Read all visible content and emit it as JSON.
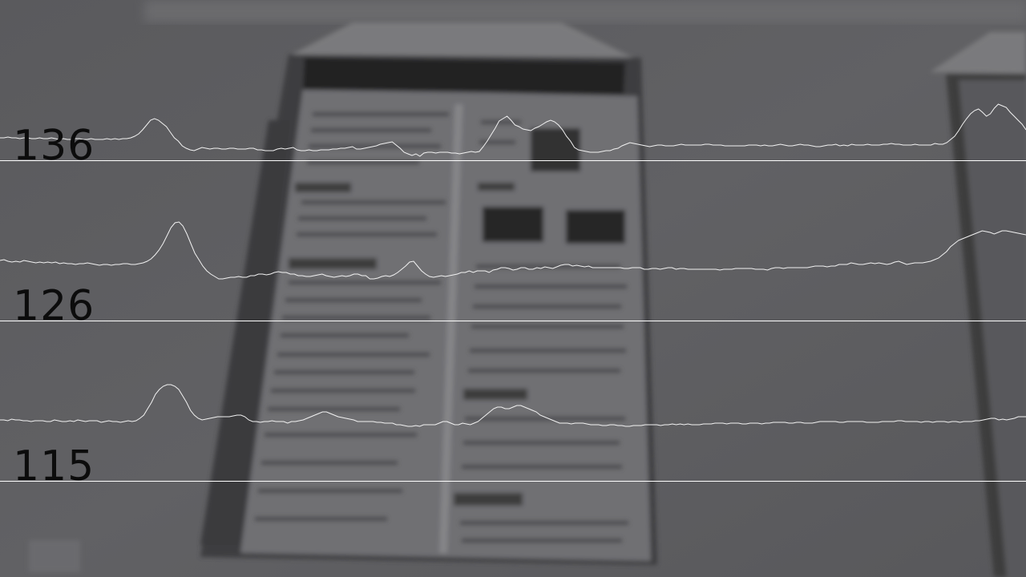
{
  "scanlines": [
    {
      "label": "136",
      "profile": [
        28,
        28,
        29,
        28,
        28,
        27,
        28,
        28,
        27,
        27,
        28,
        27,
        27,
        28,
        27,
        26,
        27,
        26,
        26,
        27,
        27,
        26,
        26,
        27,
        26,
        26,
        26,
        27,
        26,
        27,
        26,
        27,
        27,
        28,
        30,
        33,
        38,
        44,
        50,
        52,
        50,
        46,
        42,
        35,
        28,
        24,
        18,
        15,
        13,
        12,
        14,
        16,
        15,
        14,
        15,
        15,
        14,
        14,
        15,
        15,
        14,
        14,
        14,
        15,
        15,
        13,
        13,
        12,
        12,
        12,
        14,
        15,
        14,
        15,
        16,
        13,
        12,
        12,
        13,
        12,
        12,
        13,
        13,
        13,
        14,
        14,
        15,
        15,
        16,
        17,
        14,
        14,
        15,
        16,
        17,
        18,
        20,
        21,
        22,
        23,
        19,
        15,
        10,
        8,
        6,
        8,
        5,
        9,
        10,
        10,
        9,
        10,
        10,
        10,
        9,
        9,
        8,
        9,
        10,
        11,
        10,
        11,
        17,
        24,
        32,
        40,
        49,
        52,
        55,
        50,
        44,
        42,
        39,
        38,
        37,
        40,
        42,
        45,
        48,
        50,
        48,
        44,
        38,
        30,
        24,
        16,
        13,
        12,
        11,
        10,
        10,
        10,
        11,
        12,
        12,
        14,
        15,
        18,
        20,
        22,
        21,
        20,
        19,
        18,
        17,
        18,
        19,
        19,
        18,
        18,
        18,
        19,
        20,
        19,
        19,
        19,
        19,
        19,
        20,
        20,
        19,
        19,
        19,
        18,
        18,
        18,
        18,
        18,
        18,
        19,
        19,
        19,
        18,
        19,
        18,
        18,
        19,
        20,
        19,
        18,
        18,
        19,
        20,
        19,
        19,
        18,
        17,
        17,
        18,
        19,
        19,
        20,
        18,
        19,
        18,
        20,
        19,
        19,
        19,
        20,
        19,
        19,
        19,
        20,
        20,
        21,
        20,
        20,
        19,
        19,
        19,
        20,
        19,
        19,
        19,
        19,
        21,
        20,
        20,
        22,
        26,
        30,
        37,
        45,
        52,
        58,
        62,
        64,
        60,
        55,
        58,
        65,
        70,
        68,
        66,
        60,
        55,
        50,
        45,
        38
      ],
      "baseline_value": 0
    },
    {
      "label": "126",
      "profile": [
        75,
        76,
        74,
        73,
        74,
        73,
        75,
        74,
        73,
        72,
        73,
        72,
        73,
        72,
        73,
        71,
        72,
        71,
        71,
        70,
        71,
        71,
        72,
        71,
        70,
        69,
        70,
        70,
        69,
        70,
        70,
        71,
        71,
        70,
        70,
        71,
        72,
        74,
        77,
        82,
        88,
        96,
        106,
        116,
        122,
        123,
        118,
        108,
        96,
        84,
        76,
        68,
        62,
        58,
        55,
        52,
        52,
        53,
        54,
        54,
        55,
        54,
        54,
        56,
        56,
        58,
        58,
        57,
        58,
        60,
        61,
        60,
        60,
        58,
        58,
        56,
        56,
        55,
        55,
        56,
        57,
        58,
        56,
        55,
        54,
        55,
        56,
        55,
        56,
        58,
        58,
        56,
        56,
        52,
        52,
        53,
        55,
        56,
        55,
        57,
        60,
        64,
        68,
        73,
        74,
        68,
        62,
        58,
        55,
        54,
        55,
        56,
        55,
        56,
        57,
        58,
        60,
        60,
        62,
        60,
        62,
        62,
        62,
        60,
        63,
        64,
        66,
        66,
        65,
        63,
        64,
        66,
        66,
        64,
        64,
        66,
        65,
        67,
        66,
        65,
        67,
        69,
        70,
        70,
        68,
        69,
        68,
        67,
        68,
        66,
        66,
        66,
        66,
        66,
        66,
        66,
        66,
        65,
        65,
        66,
        66,
        66,
        64,
        64,
        65,
        65,
        64,
        65,
        66,
        66,
        64,
        65,
        65,
        64,
        64,
        64,
        64,
        64,
        64,
        64,
        64,
        63,
        64,
        64,
        64,
        65,
        65,
        65,
        65,
        65,
        64,
        64,
        64,
        63,
        65,
        66,
        66,
        65,
        66,
        66,
        66,
        66,
        66,
        66,
        67,
        68,
        68,
        68,
        67,
        68,
        68,
        70,
        70,
        70,
        72,
        71,
        70,
        70,
        71,
        72,
        71,
        72,
        71,
        70,
        71,
        73,
        74,
        72,
        70,
        71,
        72,
        72,
        72,
        73,
        74,
        76,
        78,
        82,
        86,
        92,
        96,
        100,
        102,
        104,
        106,
        108,
        110,
        112,
        111,
        110,
        108,
        110,
        112,
        112,
        111,
        110,
        109,
        108,
        107
      ],
      "baseline_value": 0
    },
    {
      "label": "115",
      "profile": [
        76,
        76,
        75,
        77,
        76,
        76,
        75,
        75,
        74,
        75,
        75,
        75,
        74,
        74,
        76,
        75,
        74,
        74,
        75,
        74,
        76,
        75,
        74,
        75,
        75,
        75,
        73,
        74,
        75,
        74,
        74,
        73,
        74,
        75,
        74,
        75,
        78,
        82,
        90,
        98,
        108,
        114,
        118,
        120,
        120,
        118,
        114,
        106,
        98,
        88,
        82,
        78,
        76,
        77,
        78,
        79,
        80,
        80,
        80,
        80,
        81,
        82,
        82,
        80,
        76,
        74,
        74,
        73,
        74,
        74,
        75,
        74,
        74,
        74,
        72,
        74,
        74,
        75,
        76,
        78,
        80,
        82,
        84,
        86,
        86,
        84,
        82,
        80,
        79,
        78,
        77,
        76,
        74,
        74,
        74,
        74,
        74,
        73,
        73,
        72,
        72,
        72,
        70,
        70,
        69,
        68,
        68,
        69,
        68,
        70,
        70,
        70,
        70,
        72,
        74,
        74,
        72,
        70,
        70,
        72,
        71,
        70,
        72,
        74,
        78,
        82,
        86,
        90,
        92,
        92,
        90,
        90,
        92,
        94,
        94,
        92,
        90,
        88,
        86,
        82,
        80,
        78,
        76,
        74,
        72,
        72,
        72,
        71,
        72,
        72,
        72,
        71,
        70,
        70,
        70,
        69,
        69,
        70,
        70,
        69,
        69,
        68,
        68,
        69,
        69,
        69,
        70,
        70,
        70,
        70,
        69,
        70,
        70,
        71,
        70,
        71,
        70,
        71,
        70,
        70,
        70,
        71,
        71,
        71,
        72,
        72,
        72,
        71,
        72,
        72,
        72,
        71,
        71,
        72,
        72,
        72,
        71,
        72,
        72,
        73,
        73,
        73,
        73,
        72,
        72,
        73,
        73,
        72,
        72,
        72,
        73,
        74,
        74,
        74,
        74,
        74,
        73,
        73,
        74,
        74,
        74,
        74,
        74,
        73,
        73,
        73,
        73,
        74,
        74,
        74,
        74,
        75,
        75,
        74,
        74,
        74,
        74,
        73,
        74,
        74,
        73,
        74,
        74,
        74,
        73,
        74,
        74,
        73,
        74,
        74,
        74,
        75,
        75,
        76,
        77,
        78,
        78,
        76,
        77,
        76,
        77,
        78,
        80,
        80,
        80
      ],
      "baseline_value": 0
    }
  ],
  "colors": {
    "trace": "#f2f2f2",
    "baseline": "#ffffff",
    "label": "#0c0c0c",
    "wall": "#5e5e61",
    "poster_paper": "#6e6e71",
    "poster_dark": "#2a2a2c"
  }
}
